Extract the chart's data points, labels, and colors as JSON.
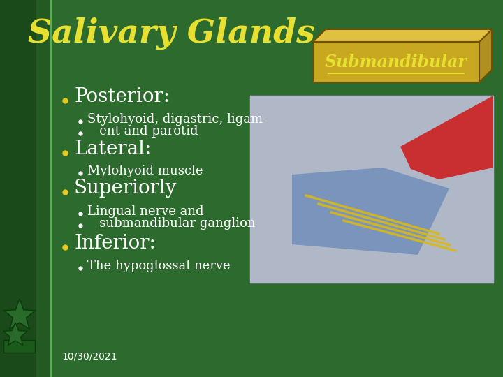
{
  "title": "Salivary Glands",
  "subtitle": "Submandibular",
  "bg_color": "#2d6a2d",
  "title_color": "#e8e030",
  "subtitle_color": "#e8e030",
  "text_color": "#ffffff",
  "bullet_color": "#e8c820",
  "box_face_color": "#c8a820",
  "box_top_color": "#e0c040",
  "box_right_color": "#b09020",
  "date_text": "10/30/2021",
  "main_bullets": [
    "Posterior:",
    "Lateral:",
    "Superiorly",
    "Inferior:"
  ],
  "sub_bullet_lines": [
    [
      "Stylohyoid, digastric, ligam-",
      "   ent and parotid"
    ],
    [
      "Mylohyoid muscle"
    ],
    [
      "Lingual nerve and",
      "   submandibular ganglion"
    ],
    [
      "The hypoglossal nerve"
    ]
  ]
}
